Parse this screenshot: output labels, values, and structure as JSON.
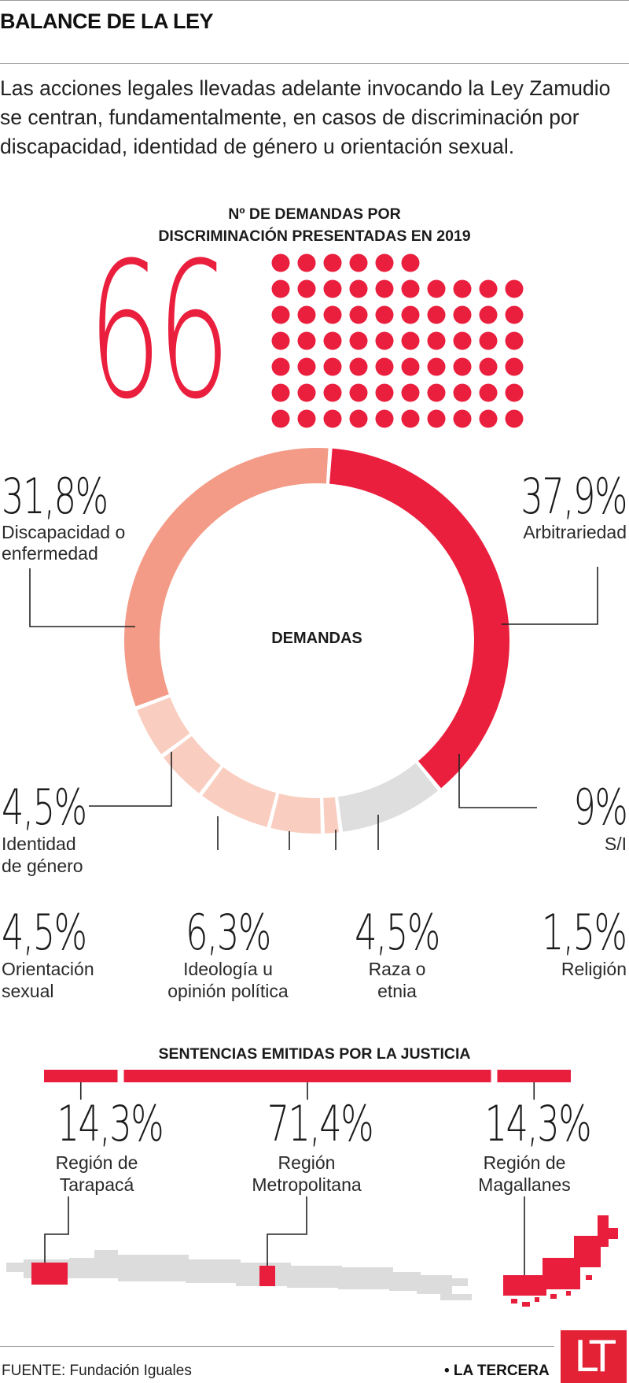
{
  "header": {
    "title": "BALANCE DE LA LEY"
  },
  "intro": {
    "text": "Las acciones legales llevadas adelante invocando la Ley Zamudio se centran, fundamentalmente, en casos de discriminación por discapacidad, identidad de género u orientación sexual."
  },
  "demandas": {
    "heading_line1": "Nº DE DEMANDAS POR",
    "heading_line2": "DISCRIMINACIÓN PRESENTADAS EN 2019",
    "total": "66",
    "dot_count": 66,
    "accent": "#ea1f3d"
  },
  "chart_data": [
    {
      "type": "pie",
      "title": "DEMANDAS",
      "categories": [
        "Arbitrariedad",
        "S/I",
        "Religión",
        "Raza o etnia",
        "Ideología u opinión política",
        "Orientación sexual",
        "Identidad de género",
        "Discapacidad o enfermedad"
      ],
      "values": [
        37.9,
        9,
        1.5,
        4.5,
        6.3,
        4.5,
        4.5,
        31.8
      ],
      "labels": [
        "37,9%",
        "9%",
        "1,5%",
        "4,5%",
        "6,3%",
        "4,5%",
        "4,5%",
        "31,8%"
      ],
      "colors": [
        "#ea1f3d",
        "#dedede",
        "#f9cdbf",
        "#f9cdbf",
        "#f9cdbf",
        "#f9cdbf",
        "#f9cdbf",
        "#f39b87"
      ]
    },
    {
      "type": "bar",
      "title": "SENTENCIAS EMITIDAS POR LA JUSTICIA",
      "categories": [
        "Región de Tarapacá",
        "Región Metropolitana",
        "Región de Magallanes"
      ],
      "values": [
        14.3,
        71.4,
        14.3
      ],
      "labels": [
        "14,3%",
        "71,4%",
        "14,3%"
      ],
      "color": "#e81e3c"
    }
  ],
  "donut": {
    "center_label": "DEMANDAS",
    "arbitrariedad": {
      "pct": "37,9%",
      "label": "Arbitrariedad"
    },
    "si": {
      "pct": "9%",
      "label": "S/I"
    },
    "religion": {
      "pct": "1,5%",
      "label": "Religión"
    },
    "raza": {
      "pct": "4,5%",
      "label_1": "Raza o",
      "label_2": "etnia"
    },
    "ideologia": {
      "pct": "6,3%",
      "label_1": "Ideología u",
      "label_2": "opinión política"
    },
    "orientacion": {
      "pct": "4,5%",
      "label_1": "Orientación",
      "label_2": "sexual"
    },
    "identidad": {
      "pct": "4,5%",
      "label_1": "Identidad",
      "label_2": "de género"
    },
    "discapacidad": {
      "pct": "31,8%",
      "label_1": "Discapacidad o",
      "label_2": "enfermedad"
    }
  },
  "sentencias": {
    "heading": "SENTENCIAS EMITIDAS POR LA JUSTICIA",
    "tarapaca": {
      "pct": "14,3%",
      "label_1": "Región de",
      "label_2": "Tarapacá"
    },
    "metropolitana": {
      "pct": "71,4%",
      "label_1": "Región",
      "label_2": "Metropolitana"
    },
    "magallanes": {
      "pct": "14,3%",
      "label_1": "Región de",
      "label_2": "Magallanes"
    }
  },
  "footer": {
    "source": "FUENTE: Fundación Iguales",
    "brand": "• LA TERCERA",
    "logo": "LT"
  }
}
